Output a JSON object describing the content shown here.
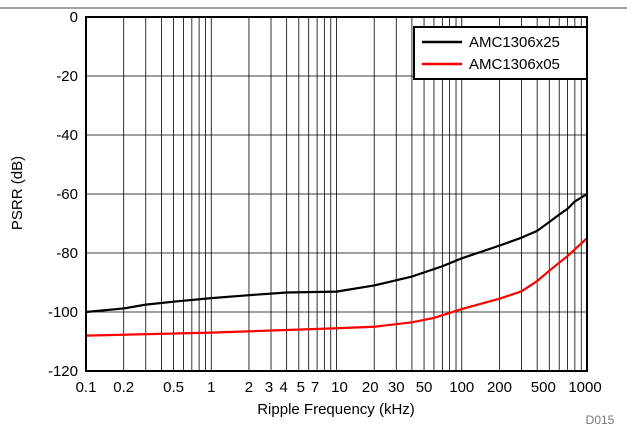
{
  "chart_data": {
    "type": "line",
    "xscale": "log",
    "xlim": [
      0.1,
      1000
    ],
    "ylim": [
      -120,
      0
    ],
    "xlabel": "Ripple Frequency (kHz)",
    "ylabel": "PSRR (dB)",
    "grid": true,
    "legend_position": "top-right",
    "figure_id": "D015",
    "xticks": [
      {
        "value": 0.1,
        "label": "0.1"
      },
      {
        "value": 0.2,
        "label": "0.2"
      },
      {
        "value": 0.5,
        "label": "0.5"
      },
      {
        "value": 1,
        "label": "1"
      },
      {
        "value": 2,
        "label": "2"
      },
      {
        "value": 3,
        "label": "3"
      },
      {
        "value": 4,
        "label": "4"
      },
      {
        "value": 5,
        "label": "5"
      },
      {
        "value": 7,
        "label": "7"
      },
      {
        "value": 10,
        "label": "10"
      },
      {
        "value": 20,
        "label": "20"
      },
      {
        "value": 30,
        "label": "30"
      },
      {
        "value": 50,
        "label": "50"
      },
      {
        "value": 100,
        "label": "100"
      },
      {
        "value": 200,
        "label": "200"
      },
      {
        "value": 500,
        "label": "500"
      },
      {
        "value": 1000,
        "label": "1000"
      }
    ],
    "yticks": [
      {
        "value": 0,
        "label": "0"
      },
      {
        "value": -20,
        "label": "-20"
      },
      {
        "value": -40,
        "label": "-40"
      },
      {
        "value": -60,
        "label": "-60"
      },
      {
        "value": -80,
        "label": "-80"
      },
      {
        "value": -100,
        "label": "-100"
      },
      {
        "value": -120,
        "label": "-120"
      }
    ],
    "series": [
      {
        "name": "AMC1306x25",
        "color": "#000000",
        "points": [
          [
            0.1,
            -100
          ],
          [
            0.2,
            -98.8
          ],
          [
            0.3,
            -97.5
          ],
          [
            0.5,
            -96.5
          ],
          [
            1,
            -95.3
          ],
          [
            2,
            -94.3
          ],
          [
            4,
            -93.4
          ],
          [
            10,
            -93.1
          ],
          [
            20,
            -91
          ],
          [
            40,
            -88
          ],
          [
            70,
            -84.5
          ],
          [
            100,
            -81.8
          ],
          [
            200,
            -77.5
          ],
          [
            300,
            -74.8
          ],
          [
            400,
            -72.5
          ],
          [
            500,
            -69.5
          ],
          [
            600,
            -67
          ],
          [
            700,
            -65
          ],
          [
            800,
            -62.5
          ],
          [
            1000,
            -60
          ]
        ]
      },
      {
        "name": "AMC1306x05",
        "color": "#ff0000",
        "points": [
          [
            0.1,
            -108
          ],
          [
            1,
            -107
          ],
          [
            10,
            -105.5
          ],
          [
            20,
            -105
          ],
          [
            40,
            -103.5
          ],
          [
            60,
            -102
          ],
          [
            100,
            -99
          ],
          [
            200,
            -95.5
          ],
          [
            300,
            -93
          ],
          [
            400,
            -89.5
          ],
          [
            500,
            -86
          ],
          [
            700,
            -81
          ],
          [
            1000,
            -75
          ]
        ]
      }
    ]
  }
}
